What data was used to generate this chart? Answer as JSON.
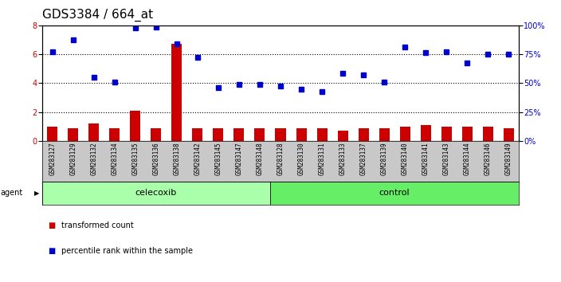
{
  "title": "GDS3384 / 664_at",
  "samples": [
    "GSM283127",
    "GSM283129",
    "GSM283132",
    "GSM283134",
    "GSM283135",
    "GSM283136",
    "GSM283138",
    "GSM283142",
    "GSM283145",
    "GSM283147",
    "GSM283148",
    "GSM283128",
    "GSM283130",
    "GSM283131",
    "GSM283133",
    "GSM283137",
    "GSM283139",
    "GSM283140",
    "GSM283141",
    "GSM283143",
    "GSM283144",
    "GSM283146",
    "GSM283149"
  ],
  "bar_values": [
    1.0,
    0.9,
    1.2,
    0.9,
    2.1,
    0.9,
    6.7,
    0.9,
    0.9,
    0.9,
    0.9,
    0.9,
    0.9,
    0.9,
    0.7,
    0.9,
    0.9,
    1.0,
    1.1,
    1.0,
    1.0,
    1.0,
    0.9
  ],
  "dot_values": [
    6.2,
    7.0,
    4.4,
    4.1,
    7.8,
    7.9,
    6.7,
    5.8,
    3.7,
    3.9,
    3.9,
    3.8,
    3.6,
    3.4,
    4.7,
    4.6,
    4.1,
    6.5,
    6.1,
    6.2,
    5.4,
    6.0,
    6.0
  ],
  "celecoxib_count": 11,
  "control_count": 12,
  "ylim_left": [
    0,
    8
  ],
  "yticks_left": [
    0,
    2,
    4,
    6,
    8
  ],
  "yticks_right": [
    0,
    25,
    50,
    75,
    100
  ],
  "ytick_labels_right": [
    "0%",
    "25%",
    "50%",
    "75%",
    "100%"
  ],
  "bar_color": "#cc0000",
  "dot_color": "#0000cc",
  "celecoxib_color": "#aaffaa",
  "control_color": "#66ee66",
  "agent_label": "agent",
  "celecoxib_label": "celecoxib",
  "control_label": "control",
  "legend_bar": "transformed count",
  "legend_dot": "percentile rank within the sample",
  "title_fontsize": 11,
  "tick_fontsize": 7,
  "sample_fontsize": 5.5
}
